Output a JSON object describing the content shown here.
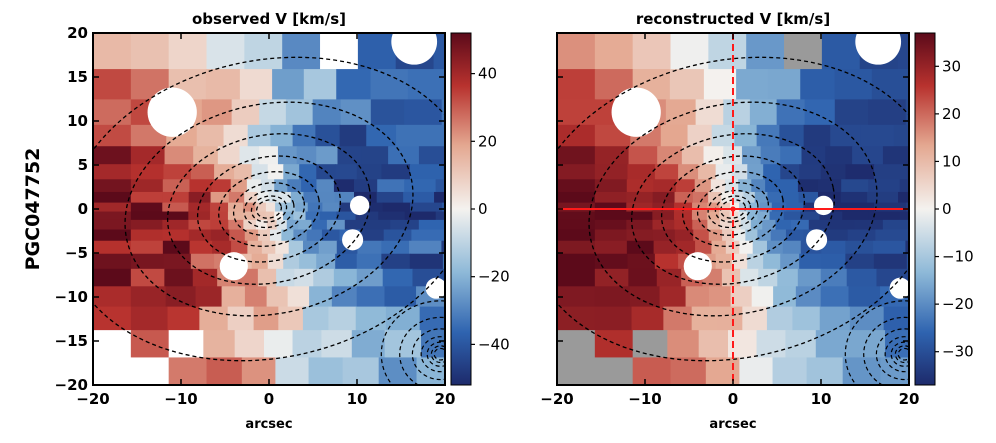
{
  "row_label": "PGC047752",
  "chart_data": [
    {
      "type": "heatmap",
      "title": "observed V [km/s]",
      "xlabel": "arcsec",
      "ylabel": "",
      "xlim": [
        -20,
        20
      ],
      "ylim": [
        -20,
        20
      ],
      "xticks": [
        -20,
        -10,
        0,
        10,
        20
      ],
      "yticks": [
        -20,
        -15,
        -10,
        -5,
        0,
        5,
        10,
        15,
        20
      ],
      "colorbar": {
        "range": [
          -52,
          52
        ],
        "ticks": [
          40,
          20,
          0,
          -20,
          -40
        ],
        "tick_labels": [
          "40",
          "20",
          "0",
          "−20",
          "−40"
        ]
      },
      "velocity_model": {
        "vmax": 45,
        "position_angle_deg": 12,
        "r_turn": 6
      },
      "contours": {
        "centers": [
          [
            0,
            0
          ],
          [
            19.5,
            -16.5
          ]
        ],
        "levels": 9
      },
      "cross_hair": false
    },
    {
      "type": "heatmap",
      "title": "reconstructed V [km/s]",
      "xlabel": "arcsec",
      "ylabel": "",
      "xlim": [
        -20,
        20
      ],
      "ylim": [
        -20,
        20
      ],
      "xticks": [
        -20,
        -10,
        0,
        10,
        20
      ],
      "yticks": [],
      "colorbar": {
        "range": [
          -37,
          37
        ],
        "ticks": [
          30,
          20,
          10,
          0,
          -10,
          -20,
          -30
        ],
        "tick_labels": [
          "30",
          "20",
          "10",
          "0",
          "−10",
          "−20",
          "−30"
        ]
      },
      "velocity_model": {
        "vmax": 36,
        "position_angle_deg": 12,
        "r_turn": 6
      },
      "contours": {
        "centers": [
          [
            0,
            0
          ],
          [
            19.5,
            -16.5
          ]
        ],
        "levels": 9
      },
      "cross_hair": true,
      "cross_hair_color": "#ff1a1a"
    }
  ],
  "colors": {
    "cmap_low": "#1d2a6b",
    "cmap_mid": "#f4f2ef",
    "cmap_high": "#5c0a1a",
    "masked": "#9a9a9a",
    "contour": "#000000"
  }
}
